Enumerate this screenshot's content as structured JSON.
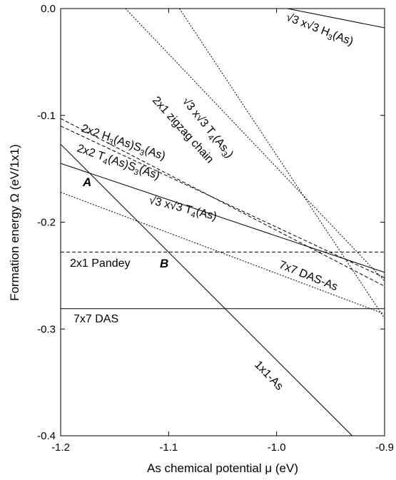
{
  "chart_data": {
    "type": "line",
    "xlabel": "As chemical potential μ (eV)",
    "ylabel": "Formation energy Ω (eV/1x1)",
    "xlim": [
      -1.2,
      -0.9
    ],
    "ylim": [
      -0.4,
      0.0
    ],
    "x_ticks": [
      "-1.2",
      "-1.1",
      "-1.0",
      "-0.9"
    ],
    "y_ticks": [
      "0.0",
      "-0.1",
      "-0.2",
      "-0.3",
      "-0.4"
    ],
    "series": [
      {
        "name": "√3 x√3 H3(As)",
        "style": "solid",
        "points": [
          [
            -0.99,
            0.0
          ],
          [
            -0.9,
            -0.018
          ]
        ]
      },
      {
        "name": "√3 x√3 T4(As3)",
        "style": "dotted",
        "points": [
          [
            -1.09,
            0.0
          ],
          [
            -0.9,
            -0.29
          ]
        ]
      },
      {
        "name": "2x1 zigzag chain",
        "style": "dotted",
        "points": [
          [
            -1.14,
            0.0
          ],
          [
            -0.9,
            -0.255
          ]
        ]
      },
      {
        "name": "2x2 H3(As)S3(As)",
        "style": "dashed",
        "points": [
          [
            -1.2,
            -0.103
          ],
          [
            -0.9,
            -0.26
          ]
        ]
      },
      {
        "name": "2x2 T4(As)S3(As)",
        "style": "dashed",
        "points": [
          [
            -1.2,
            -0.11
          ],
          [
            -0.9,
            -0.252
          ]
        ]
      },
      {
        "name": "√3 x√3 T4(As)",
        "style": "solid",
        "points": [
          [
            -1.2,
            -0.145
          ],
          [
            -0.9,
            -0.247
          ]
        ]
      },
      {
        "name": "7x7 DAS-As",
        "style": "dotted",
        "points": [
          [
            -1.2,
            -0.172
          ],
          [
            -0.9,
            -0.286
          ]
        ]
      },
      {
        "name": "2x1 Pandey",
        "style": "dashed",
        "points": [
          [
            -1.2,
            -0.228
          ],
          [
            -0.9,
            -0.228
          ]
        ]
      },
      {
        "name": "7x7 DAS",
        "style": "solid",
        "points": [
          [
            -1.2,
            -0.281
          ],
          [
            -0.9,
            -0.281
          ]
        ]
      },
      {
        "name": "1x1-As",
        "style": "solid",
        "points": [
          [
            -1.2,
            -0.127
          ],
          [
            -0.93,
            -0.4
          ]
        ]
      }
    ],
    "annotations": [
      {
        "text": "A",
        "x": -1.176,
        "y": -0.153
      },
      {
        "text": "B",
        "x": -1.115,
        "y": -0.228
      }
    ],
    "labels": {
      "h3": {
        "pre": "√3 x√3 H",
        "sub": "3",
        "post": "(As)"
      },
      "t4as3": {
        "pre": "√3 x√3 T",
        "sub": "4",
        "mid": "(As",
        "sub2": "3",
        "post": ")"
      },
      "zigzag": "2x1 zigzag chain",
      "h3s3": {
        "pre": "2x2 H",
        "sub": "3",
        "mid": "(As)S",
        "sub2": "3",
        "post": "(As)"
      },
      "t4s3": {
        "pre": "2x2 T",
        "sub": "4",
        "mid": "(As)S",
        "sub2": "3",
        "post": "(As)"
      },
      "t4as": {
        "pre": "√3 x√3 T",
        "sub": "4",
        "post": "(As)"
      },
      "dasas": "7x7 DAS-As",
      "pandey": "2x1 Pandey",
      "das": "7x7 DAS",
      "as1x1": "1x1-As"
    },
    "grid": false,
    "legend": "none"
  }
}
